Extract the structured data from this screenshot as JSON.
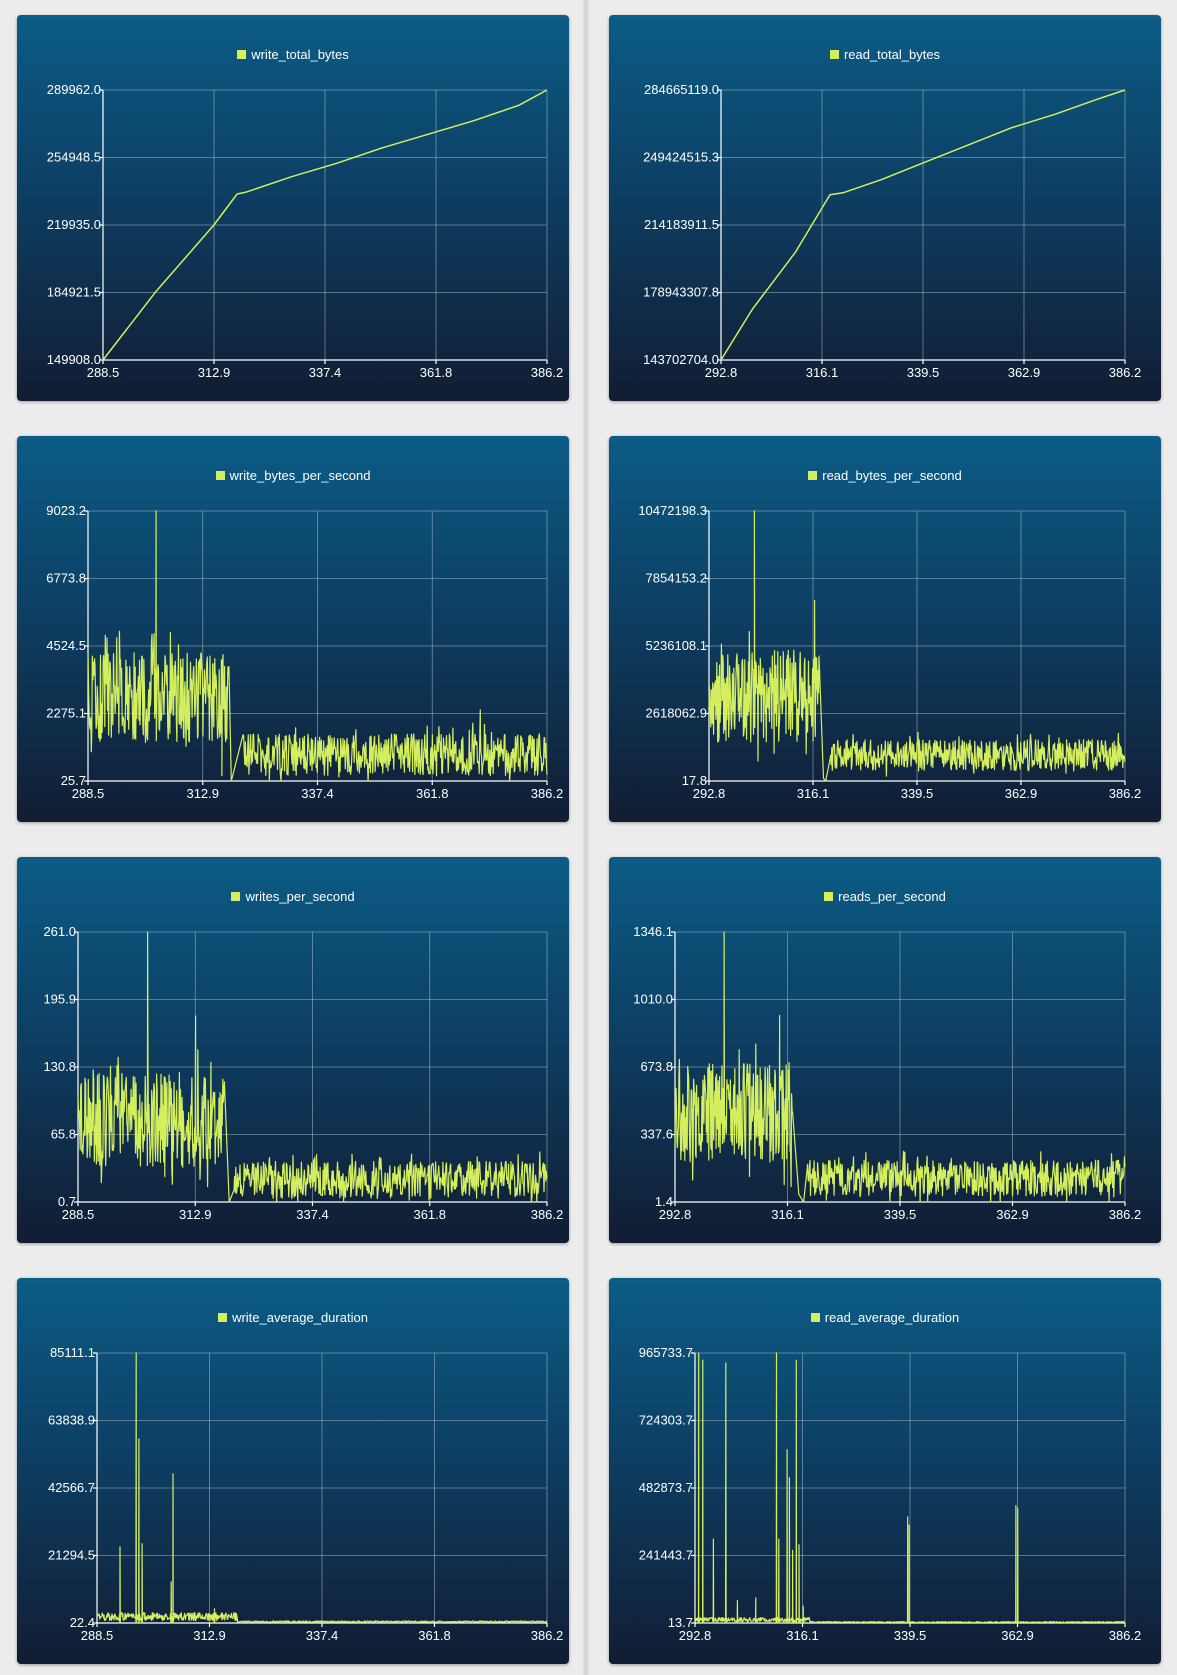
{
  "colors": {
    "series": "#d4ee5e",
    "card_top": "#0b5c86",
    "card_bottom": "#111d33"
  },
  "chart_data": [
    {
      "id": "write_total_bytes",
      "type": "line",
      "legend": "write_total_bytes",
      "yticks": [
        "149908.0",
        "184921.5",
        "219935.0",
        "254948.5",
        "289962.0"
      ],
      "xticks": [
        "288.5",
        "312.9",
        "337.4",
        "361.8",
        "386.2"
      ],
      "xlim": [
        288.5,
        386.2
      ],
      "ylim": [
        149908.0,
        289962.0
      ],
      "grid": true,
      "legend_position": "top-center",
      "x": [
        288.5,
        300.0,
        312.9,
        318.0,
        320.0,
        330.0,
        340.0,
        350.0,
        360.0,
        370.0,
        380.0,
        386.2
      ],
      "y": [
        149908,
        185000,
        219935,
        236000,
        237000,
        245000,
        252000,
        260000,
        267000,
        274000,
        282000,
        289962
      ]
    },
    {
      "id": "read_total_bytes",
      "type": "line",
      "legend": "read_total_bytes",
      "yticks": [
        "143702704.0",
        "178943307.8",
        "214183911.5",
        "249424515.3",
        "284665119.0"
      ],
      "xticks": [
        "292.8",
        "316.1",
        "339.5",
        "362.9",
        "386.2"
      ],
      "xlim": [
        292.8,
        386.2
      ],
      "ylim": [
        143702704.0,
        284665119.0
      ],
      "grid": true,
      "legend_position": "top-center",
      "x": [
        292.8,
        300.0,
        310.0,
        318.0,
        321.0,
        330.0,
        340.0,
        350.0,
        360.0,
        370.0,
        380.0,
        386.2
      ],
      "y": [
        143702704,
        170000000,
        200000000,
        230000000,
        231000000,
        238000000,
        247000000,
        256000000,
        265000000,
        272000000,
        280000000,
        284665119
      ]
    },
    {
      "id": "write_bytes_per_second",
      "type": "line",
      "legend": "write_bytes_per_second",
      "yticks": [
        "25.7",
        "2275.1",
        "4524.5",
        "6773.8",
        "9023.2"
      ],
      "xticks": [
        "288.5",
        "312.9",
        "337.4",
        "361.8",
        "386.2"
      ],
      "xlim": [
        288.5,
        386.2
      ],
      "ylim": [
        25.7,
        9023.2
      ],
      "grid": true,
      "legend_position": "top-center",
      "segments": [
        {
          "x0": 288.5,
          "x1": 318.5,
          "base": 2800,
          "amp": 1500,
          "n": 260
        },
        {
          "x0": 321.5,
          "x1": 386.2,
          "base": 900,
          "amp": 700,
          "n": 520
        }
      ],
      "peaks": [
        [
          303.0,
          9023.2
        ],
        [
          315.5,
          4100
        ],
        [
          317.0,
          200
        ],
        [
          319.0,
          25.7
        ],
        [
          372.0,
          2400
        ]
      ]
    },
    {
      "id": "read_bytes_per_second",
      "type": "line",
      "legend": "read_bytes_per_second",
      "yticks": [
        "17.8",
        "2618062.9",
        "5236108.1",
        "7854153.2",
        "10472198.3"
      ],
      "xticks": [
        "292.8",
        "316.1",
        "339.5",
        "362.9",
        "386.2"
      ],
      "xlim": [
        292.8,
        386.2
      ],
      "ylim": [
        17.8,
        10472198.3
      ],
      "grid": true,
      "legend_position": "top-center",
      "segments": [
        {
          "x0": 292.8,
          "x1": 317.5,
          "base": 3300000,
          "amp": 1800000,
          "n": 240
        },
        {
          "x0": 320.0,
          "x1": 386.2,
          "base": 1000000,
          "amp": 600000,
          "n": 540
        }
      ],
      "peaks": [
        [
          303.0,
          10472198.3
        ],
        [
          316.5,
          7000000
        ],
        [
          318.5,
          100000
        ],
        [
          319.0,
          17.8
        ]
      ]
    },
    {
      "id": "writes_per_second",
      "type": "line",
      "legend": "writes_per_second",
      "yticks": [
        "0.7",
        "65.8",
        "130.8",
        "195.9",
        "261.0"
      ],
      "xticks": [
        "288.5",
        "312.9",
        "337.4",
        "361.8",
        "386.2"
      ],
      "xlim": [
        288.5,
        386.2
      ],
      "ylim": [
        0.7,
        261.0
      ],
      "grid": true,
      "legend_position": "top-center",
      "segments": [
        {
          "x0": 288.5,
          "x1": 319.0,
          "base": 80,
          "amp": 45,
          "n": 270
        },
        {
          "x0": 321.0,
          "x1": 386.2,
          "base": 22,
          "amp": 18,
          "n": 520
        }
      ],
      "peaks": [
        [
          303.0,
          261.0
        ],
        [
          313.0,
          180
        ],
        [
          320.0,
          0.7
        ]
      ]
    },
    {
      "id": "reads_per_second",
      "type": "line",
      "legend": "reads_per_second",
      "yticks": [
        "1.4",
        "337.6",
        "673.8",
        "1010.0",
        "1346.1"
      ],
      "xticks": [
        "292.8",
        "316.1",
        "339.5",
        "362.9",
        "386.2"
      ],
      "xlim": [
        292.8,
        386.2
      ],
      "ylim": [
        1.4,
        1346.1
      ],
      "grid": true,
      "legend_position": "top-center",
      "segments": [
        {
          "x0": 292.8,
          "x1": 317.2,
          "base": 450,
          "amp": 250,
          "n": 240
        },
        {
          "x0": 320.2,
          "x1": 386.2,
          "base": 120,
          "amp": 90,
          "n": 540
        }
      ],
      "peaks": [
        [
          303.0,
          1346.1
        ],
        [
          314.5,
          930
        ],
        [
          318.5,
          40
        ],
        [
          319.5,
          1.4
        ]
      ]
    },
    {
      "id": "write_average_duration",
      "type": "line",
      "legend": "write_average_duration",
      "yticks": [
        "22.4",
        "21294.5",
        "42566.7",
        "63838.9",
        "85111.1"
      ],
      "xticks": [
        "288.5",
        "312.9",
        "337.4",
        "361.8",
        "386.2"
      ],
      "xlim": [
        288.5,
        386.2
      ],
      "ylim": [
        22.4,
        85111.1
      ],
      "grid": true,
      "legend_position": "top-center",
      "baseline_noise": [
        {
          "x0": 288.5,
          "x1": 319.0,
          "base": 2500,
          "amp": 2500,
          "n": 300
        },
        {
          "x0": 319.0,
          "x1": 386.2,
          "base": 600,
          "amp": 500,
          "n": 500
        }
      ],
      "spikes": [
        [
          293.5,
          24000
        ],
        [
          297.0,
          85111.1
        ],
        [
          297.6,
          58000
        ],
        [
          298.3,
          25000
        ],
        [
          305.0,
          47000
        ],
        [
          304.6,
          13000
        ],
        [
          314.0,
          4500
        ]
      ]
    },
    {
      "id": "read_average_duration",
      "type": "line",
      "legend": "read_average_duration",
      "yticks": [
        "13.7",
        "241443.7",
        "482873.7",
        "724303.7",
        "965733.7"
      ],
      "xticks": [
        "292.8",
        "316.1",
        "339.5",
        "362.9",
        "386.2"
      ],
      "xlim": [
        292.8,
        386.2
      ],
      "ylim": [
        13.7,
        965733.7
      ],
      "grid": true,
      "legend_position": "top-center",
      "baseline_noise": [
        {
          "x0": 292.8,
          "x1": 318.0,
          "base": 15000,
          "amp": 15000,
          "n": 250
        },
        {
          "x0": 318.0,
          "x1": 386.2,
          "base": 4000,
          "amp": 4000,
          "n": 500
        }
      ],
      "spikes": [
        [
          293.6,
          965733.7
        ],
        [
          294.5,
          940000
        ],
        [
          296.8,
          300000
        ],
        [
          299.5,
          930000
        ],
        [
          302.0,
          80000
        ],
        [
          306.0,
          90000
        ],
        [
          310.5,
          965733.7
        ],
        [
          311.0,
          300000
        ],
        [
          312.8,
          620000
        ],
        [
          313.3,
          520000
        ],
        [
          314.0,
          260000
        ],
        [
          314.8,
          940000
        ],
        [
          315.4,
          280000
        ],
        [
          316.3,
          60000
        ],
        [
          339.0,
          380000
        ],
        [
          339.3,
          350000
        ],
        [
          362.5,
          420000
        ],
        [
          362.9,
          410000
        ]
      ]
    }
  ]
}
